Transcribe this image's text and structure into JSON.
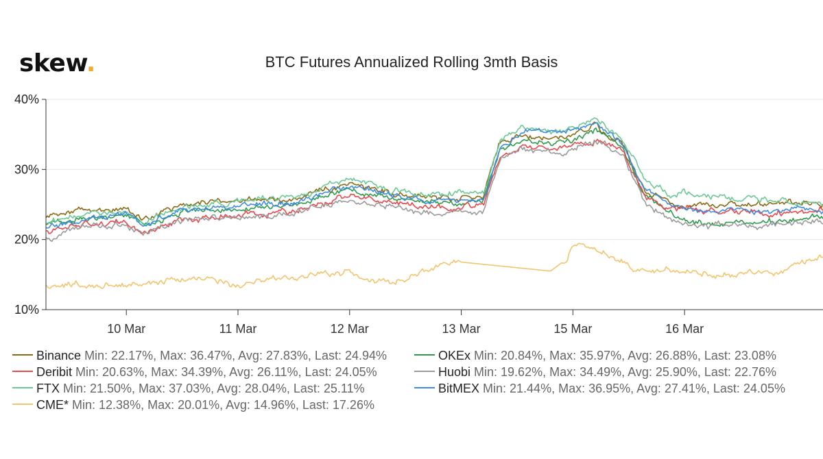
{
  "logo": {
    "text": "skew",
    "dot": "."
  },
  "chart_data": {
    "type": "line",
    "title": "BTC Futures Annualized Rolling 3mth Basis",
    "xlabel": "",
    "ylabel": "",
    "ylim": [
      10,
      40
    ],
    "yticks": [
      10,
      20,
      30,
      40
    ],
    "ytick_labels": [
      "10%",
      "20%",
      "30%",
      "40%"
    ],
    "xlim": [
      9.28,
      16.24
    ],
    "xticks": [
      {
        "label": "10 Mar",
        "value": 10.0
      },
      {
        "label": "11 Mar",
        "value": 11.0
      },
      {
        "label": "12 Mar",
        "value": 12.0
      },
      {
        "label": "13 Mar",
        "value": 13.0
      },
      {
        "label": "15 Mar",
        "value": 14.0
      },
      {
        "label": "16 Mar",
        "value": 15.0
      }
    ],
    "x_note": "time axis compressed; weekend gap between 13 Mar and 15 Mar",
    "grid": "horizontal",
    "legend_position": "bottom",
    "series": [
      {
        "name": "Binance",
        "color": "#8b6914",
        "stats": "Min: 22.17%, Max: 36.47%, Avg: 27.83%, Last: 24.94%",
        "x": [
          9.28,
          9.6,
          10.0,
          10.15,
          10.5,
          11.0,
          11.5,
          12.0,
          12.5,
          12.9,
          13.2,
          13.35,
          13.55,
          13.8,
          14.0,
          14.2,
          14.45,
          14.65,
          14.85,
          15.0,
          15.2,
          16.0,
          16.24
        ],
        "values": [
          23.0,
          24.2,
          24.3,
          22.8,
          25.0,
          25.6,
          25.8,
          28.0,
          26.2,
          25.8,
          26.3,
          34.0,
          35.0,
          34.5,
          34.8,
          36.2,
          33.5,
          27.0,
          25.5,
          25.0,
          24.8,
          25.3,
          24.94
        ]
      },
      {
        "name": "OKEx",
        "color": "#2e9b4c",
        "stats": "Min: 20.84%, Max: 35.97%, Avg: 26.88%, Last: 23.08%",
        "x": [
          9.28,
          9.6,
          10.0,
          10.15,
          10.5,
          11.0,
          11.5,
          12.0,
          12.5,
          12.9,
          13.2,
          13.35,
          13.55,
          13.8,
          14.0,
          14.2,
          14.45,
          14.65,
          14.85,
          15.0,
          15.2,
          16.0,
          16.24
        ],
        "values": [
          22.0,
          23.0,
          23.4,
          22.0,
          24.0,
          24.5,
          25.0,
          27.2,
          25.4,
          25.0,
          25.5,
          33.0,
          34.0,
          33.8,
          34.0,
          35.8,
          33.0,
          26.0,
          24.0,
          22.5,
          22.0,
          22.8,
          23.08
        ]
      },
      {
        "name": "Deribit",
        "color": "#e8474c",
        "stats": "Min: 20.63%, Max: 34.39%, Avg: 26.11%, Last: 24.05%",
        "x": [
          9.28,
          9.6,
          10.0,
          10.15,
          10.5,
          11.0,
          11.5,
          12.0,
          12.5,
          12.9,
          13.2,
          13.35,
          13.55,
          13.8,
          14.0,
          14.2,
          14.45,
          14.65,
          14.85,
          15.0,
          15.2,
          16.0,
          16.24
        ],
        "values": [
          21.0,
          22.2,
          22.5,
          21.0,
          23.0,
          23.6,
          24.0,
          26.4,
          25.0,
          24.6,
          25.0,
          32.0,
          33.3,
          33.0,
          33.2,
          34.2,
          32.5,
          26.0,
          24.5,
          24.3,
          24.0,
          23.9,
          24.05
        ]
      },
      {
        "name": "Huobi",
        "color": "#9a9a9a",
        "stats": "Min: 19.62%, Max: 34.49%, Avg: 25.90%, Last: 22.76%",
        "x": [
          9.28,
          9.6,
          10.0,
          10.15,
          10.5,
          11.0,
          11.5,
          12.0,
          12.5,
          12.9,
          13.2,
          13.35,
          13.55,
          13.8,
          14.0,
          14.2,
          14.45,
          14.65,
          14.85,
          15.0,
          15.2,
          16.0,
          16.24
        ],
        "values": [
          20.0,
          21.8,
          22.2,
          20.8,
          22.8,
          23.2,
          23.6,
          25.8,
          24.2,
          23.8,
          24.0,
          31.5,
          32.8,
          32.5,
          32.5,
          34.3,
          32.0,
          25.0,
          23.0,
          22.0,
          21.8,
          22.2,
          22.76
        ]
      },
      {
        "name": "FTX",
        "color": "#6cc894",
        "stats": "Min: 21.50%, Max: 37.03%, Avg: 28.04%, Last: 25.11%",
        "x": [
          9.28,
          9.6,
          10.0,
          10.15,
          10.5,
          11.0,
          11.5,
          12.0,
          12.5,
          12.9,
          13.2,
          13.35,
          13.55,
          13.8,
          14.0,
          14.2,
          14.45,
          14.65,
          14.85,
          15.0,
          15.2,
          16.0,
          16.24
        ],
        "values": [
          22.5,
          23.6,
          24.0,
          22.6,
          24.8,
          25.4,
          25.9,
          28.6,
          26.6,
          26.6,
          26.5,
          34.5,
          35.8,
          35.5,
          35.8,
          37.0,
          34.0,
          28.5,
          26.5,
          26.8,
          26.2,
          25.5,
          25.11
        ]
      },
      {
        "name": "BitMEX",
        "color": "#3f8be0",
        "stats": "Min: 21.44%, Max: 36.95%, Avg: 27.41%, Last: 24.05%",
        "x": [
          9.28,
          9.6,
          10.0,
          10.15,
          10.5,
          11.0,
          11.5,
          12.0,
          12.5,
          12.9,
          13.2,
          13.35,
          13.55,
          13.8,
          14.0,
          14.2,
          14.45,
          14.65,
          14.85,
          15.0,
          15.2,
          16.0,
          16.24
        ],
        "values": [
          21.8,
          23.0,
          23.6,
          22.2,
          24.2,
          24.9,
          25.3,
          27.6,
          25.8,
          25.4,
          25.7,
          33.4,
          35.5,
          35.2,
          35.5,
          36.9,
          33.8,
          27.2,
          25.2,
          24.3,
          24.0,
          24.3,
          24.05
        ]
      },
      {
        "name": "CME*",
        "color": "#f2c46d",
        "stats": "Min: 12.38%, Max: 20.01%, Avg: 14.96%, Last: 17.26%",
        "x": [
          9.28,
          9.6,
          10.0,
          10.3,
          10.7,
          11.0,
          11.3,
          11.7,
          12.0,
          12.2,
          12.5,
          12.65,
          12.75,
          12.85,
          12.99,
          13.8,
          13.95,
          14.0,
          14.2,
          14.4,
          14.55,
          14.7,
          14.9,
          15.1,
          15.2,
          15.7,
          15.9,
          16.0,
          16.1,
          16.24
        ],
        "values": [
          13.3,
          13.6,
          13.5,
          14.2,
          14.4,
          13.5,
          14.3,
          15.0,
          15.3,
          14.0,
          14.2,
          15.5,
          15.8,
          16.5,
          16.8,
          15.5,
          17.3,
          19.5,
          18.5,
          17.0,
          15.8,
          15.2,
          15.8,
          15.5,
          15.1,
          15.2,
          15.6,
          16.5,
          17.0,
          17.26
        ]
      }
    ]
  }
}
